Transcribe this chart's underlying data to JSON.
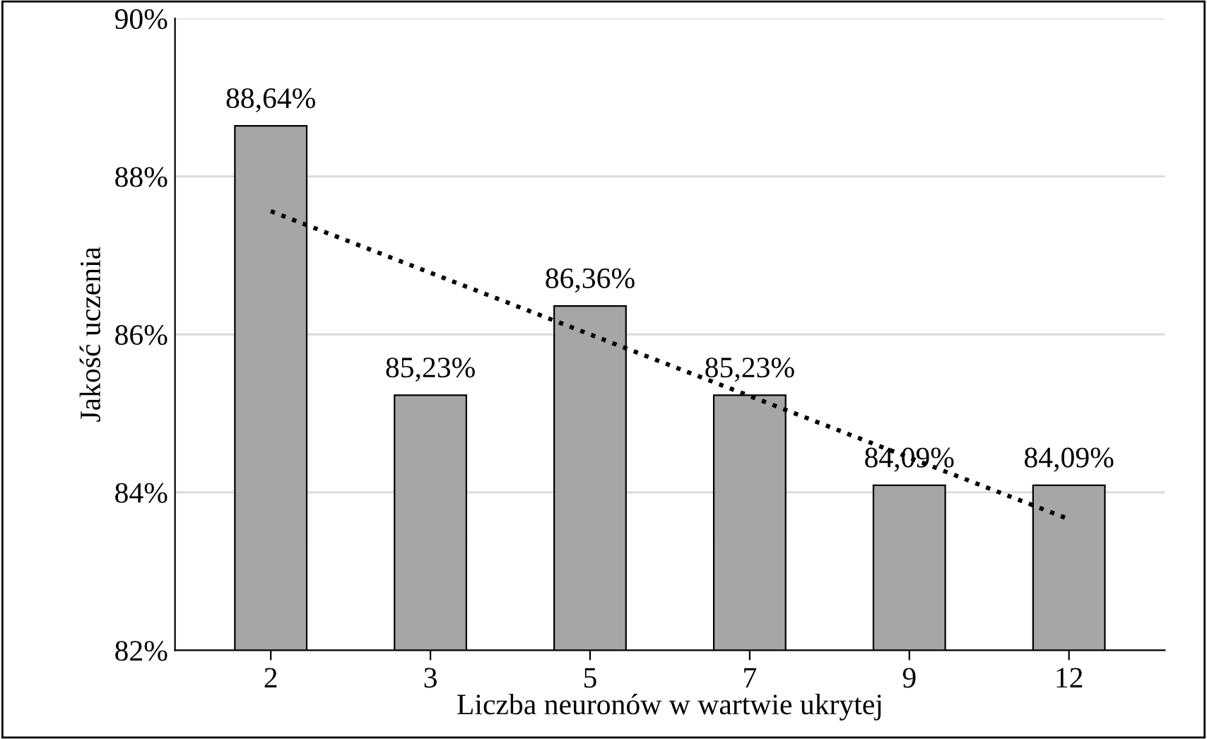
{
  "chart_data": {
    "type": "bar",
    "xlabel": "Liczba neuronów w wartwie ukrytej",
    "ylabel": "Jakość uczenia",
    "categories": [
      "2",
      "3",
      "5",
      "7",
      "9",
      "12"
    ],
    "series": [
      {
        "color": "#a6a6a6",
        "values": [
          88.64,
          85.23,
          86.36,
          85.23,
          84.09,
          84.09
        ],
        "value_labels": [
          "88,64%",
          "85,23%",
          "86,36%",
          "85,23%",
          "84,09%",
          "84,09%"
        ]
      },
      {
        "type": "line",
        "color": "#000000",
        "line_style": "dotted",
        "x": [
          "2",
          "12"
        ],
        "values": [
          87.56,
          83.66
        ]
      }
    ],
    "ylim": [
      82,
      90
    ],
    "yticks": [
      {
        "value": 82,
        "label": "82%"
      },
      {
        "value": 84,
        "label": "84%"
      },
      {
        "value": 86,
        "label": "86%"
      },
      {
        "value": 88,
        "label": "88%"
      },
      {
        "value": 90,
        "label": "90%"
      }
    ],
    "grid": "y",
    "legend": false
  }
}
